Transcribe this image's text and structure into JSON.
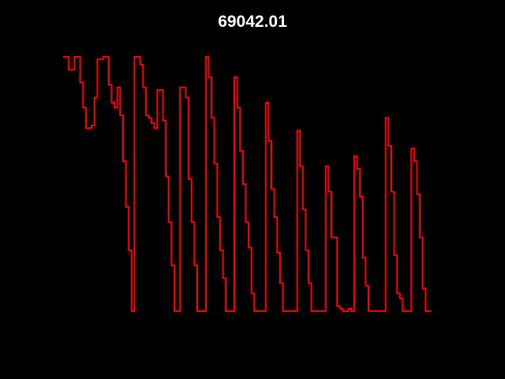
{
  "chart_data": {
    "type": "line",
    "step": true,
    "title": "69042.01",
    "xlabel": "",
    "ylabel": "",
    "xlim": [
      0,
      141
    ],
    "ylim": [
      0,
      1
    ],
    "axes_visible": false,
    "grid": false,
    "line_color": "#ff0000",
    "background": "#000000",
    "series": [
      {
        "values": [
          1.0,
          1.0,
          0.95,
          0.95,
          1.0,
          1.0,
          0.9,
          0.8,
          0.72,
          0.72,
          0.73,
          0.84,
          0.99,
          0.99,
          1.0,
          1.0,
          0.89,
          0.82,
          0.8,
          0.88,
          0.77,
          0.59,
          0.41,
          0.24,
          0.0,
          1.0,
          1.0,
          0.97,
          0.88,
          0.77,
          0.76,
          0.74,
          0.72,
          0.87,
          0.87,
          0.75,
          0.53,
          0.35,
          0.18,
          0.0,
          0.0,
          0.88,
          0.88,
          0.84,
          0.52,
          0.35,
          0.18,
          0.0,
          0.0,
          0.0,
          1.0,
          0.92,
          0.76,
          0.58,
          0.37,
          0.24,
          0.13,
          0.0,
          0.0,
          0.0,
          0.92,
          0.8,
          0.63,
          0.5,
          0.35,
          0.25,
          0.07,
          0.0,
          0.0,
          0.0,
          0.0,
          0.82,
          0.67,
          0.48,
          0.37,
          0.23,
          0.11,
          0.0,
          0.0,
          0.0,
          0.0,
          0.0,
          0.71,
          0.57,
          0.4,
          0.24,
          0.11,
          0.0,
          0.0,
          0.0,
          0.0,
          0.0,
          0.57,
          0.47,
          0.29,
          0.29,
          0.02,
          0.01,
          0.0,
          0.0,
          0.01,
          0.0,
          0.61,
          0.56,
          0.45,
          0.21,
          0.1,
          0.0,
          0.0,
          0.0,
          0.0,
          0.0,
          0.0,
          0.76,
          0.65,
          0.47,
          0.22,
          0.07,
          0.05,
          0.0,
          0.0,
          0.0,
          0.64,
          0.59,
          0.46,
          0.29,
          0.09,
          0.0,
          0.0
        ]
      }
    ]
  }
}
